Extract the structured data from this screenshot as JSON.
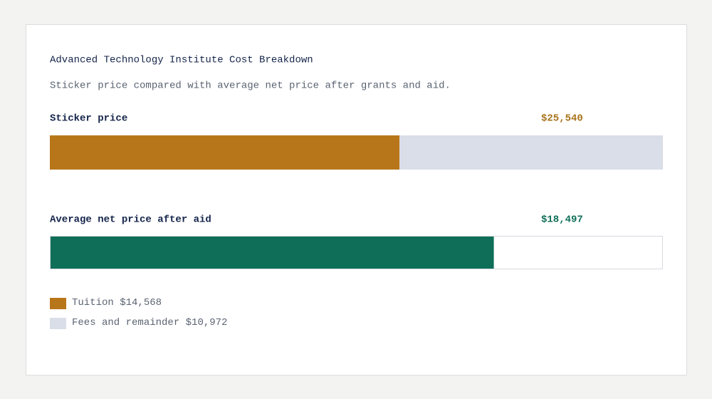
{
  "chart_data": {
    "type": "bar",
    "title": "Advanced Technology Institute Cost Breakdown",
    "subtitle": "Sticker price compared with average net price after grants and aid.",
    "bars": [
      {
        "label": "Sticker price",
        "value": 25540,
        "value_label": "$25,540",
        "color": "#a8731a",
        "segments": [
          {
            "name": "Tuition",
            "value": 14568,
            "value_label": "$14,568",
            "color": "#b8761a"
          },
          {
            "name": "Fees and remainder",
            "value": 10972,
            "value_label": "$10,972",
            "color": "#d9dee8"
          }
        ]
      },
      {
        "label": "Average net price after aid",
        "value": 18497,
        "value_label": "$18,497",
        "color": "#0f6e58"
      }
    ]
  }
}
